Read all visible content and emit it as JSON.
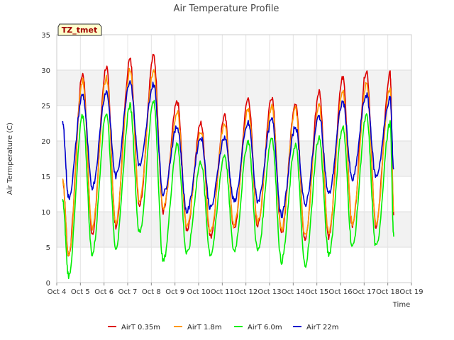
{
  "chart_data": {
    "type": "line",
    "title": "Air Temperature Profile",
    "xlabel": "Time",
    "ylabel": "Air Termperature (C)",
    "badge": "TZ_tmet",
    "xlim": [
      4,
      19
    ],
    "ylim": [
      0,
      35
    ],
    "yticks": [
      0,
      5,
      10,
      15,
      20,
      25,
      30,
      35
    ],
    "xticks": [
      {
        "value": 4,
        "label": "Oct 4"
      },
      {
        "value": 5,
        "label": "Oct 5"
      },
      {
        "value": 6,
        "label": "Oct 6"
      },
      {
        "value": 7,
        "label": "Oct 7"
      },
      {
        "value": 8,
        "label": "Oct 8"
      },
      {
        "value": 9,
        "label": "Oct 9"
      },
      {
        "value": 10,
        "label": "Oct 10"
      },
      {
        "value": 11,
        "label": "Oct 11"
      },
      {
        "value": 12,
        "label": "Oct 12"
      },
      {
        "value": 13,
        "label": "Oct 13"
      },
      {
        "value": 14,
        "label": "Oct 14"
      },
      {
        "value": 15,
        "label": "Oct 15"
      },
      {
        "value": 16,
        "label": "Oct 16"
      },
      {
        "value": 17,
        "label": "Oct 17"
      },
      {
        "value": 18,
        "label": "Oct 18"
      },
      {
        "value": 19,
        "label": "Oct 19"
      }
    ],
    "grid": true,
    "legend_position": "bottom",
    "series": [
      {
        "name": "AirT 0.35m",
        "color": "#dd0000",
        "min": [
          4.0,
          7.0,
          8.0,
          11.0,
          10.0,
          7.5,
          6.5,
          7.5,
          8.0,
          7.0,
          6.0,
          6.5,
          8.0,
          8.0,
          7.5,
          9.5
        ],
        "max": [
          29.5,
          30.5,
          31.5,
          32.0,
          25.5,
          22.5,
          23.5,
          26.0,
          26.3,
          25.5,
          27.0,
          29.0,
          30.0,
          29.5
        ]
      },
      {
        "name": "AirT 1.8m",
        "color": "#ff9900",
        "min": [
          4.0,
          7.5,
          8.5,
          11.5,
          10.5,
          8.0,
          7.0,
          8.0,
          8.5,
          7.5,
          6.5,
          7.0,
          8.5,
          8.5,
          8.0,
          10.0
        ],
        "max": [
          28.5,
          29.0,
          30.0,
          30.0,
          24.0,
          21.5,
          22.5,
          24.5,
          25.0,
          24.5,
          25.0,
          27.0,
          28.0,
          27.5
        ]
      },
      {
        "name": "AirT 6.0m",
        "color": "#00ee00",
        "min": [
          1.0,
          4.0,
          5.0,
          7.0,
          3.0,
          4.0,
          4.0,
          4.5,
          4.5,
          3.0,
          2.5,
          4.0,
          5.0,
          5.0,
          4.0,
          6.5
        ],
        "max": [
          23.5,
          24.0,
          25.0,
          25.5,
          19.5,
          17.0,
          18.0,
          20.0,
          20.5,
          19.5,
          20.5,
          22.0,
          23.5,
          22.5
        ]
      },
      {
        "name": "AirT 22m",
        "color": "#0000cc",
        "min": [
          12.0,
          13.5,
          15.0,
          16.5,
          12.5,
          10.0,
          10.5,
          11.5,
          11.5,
          9.5,
          11.0,
          12.5,
          14.5,
          15.0,
          13.0,
          16.0
        ],
        "max": [
          26.5,
          27.0,
          28.5,
          28.0,
          22.0,
          20.5,
          20.5,
          22.5,
          23.0,
          22.0,
          23.5,
          25.5,
          26.5,
          26.0
        ]
      }
    ]
  }
}
